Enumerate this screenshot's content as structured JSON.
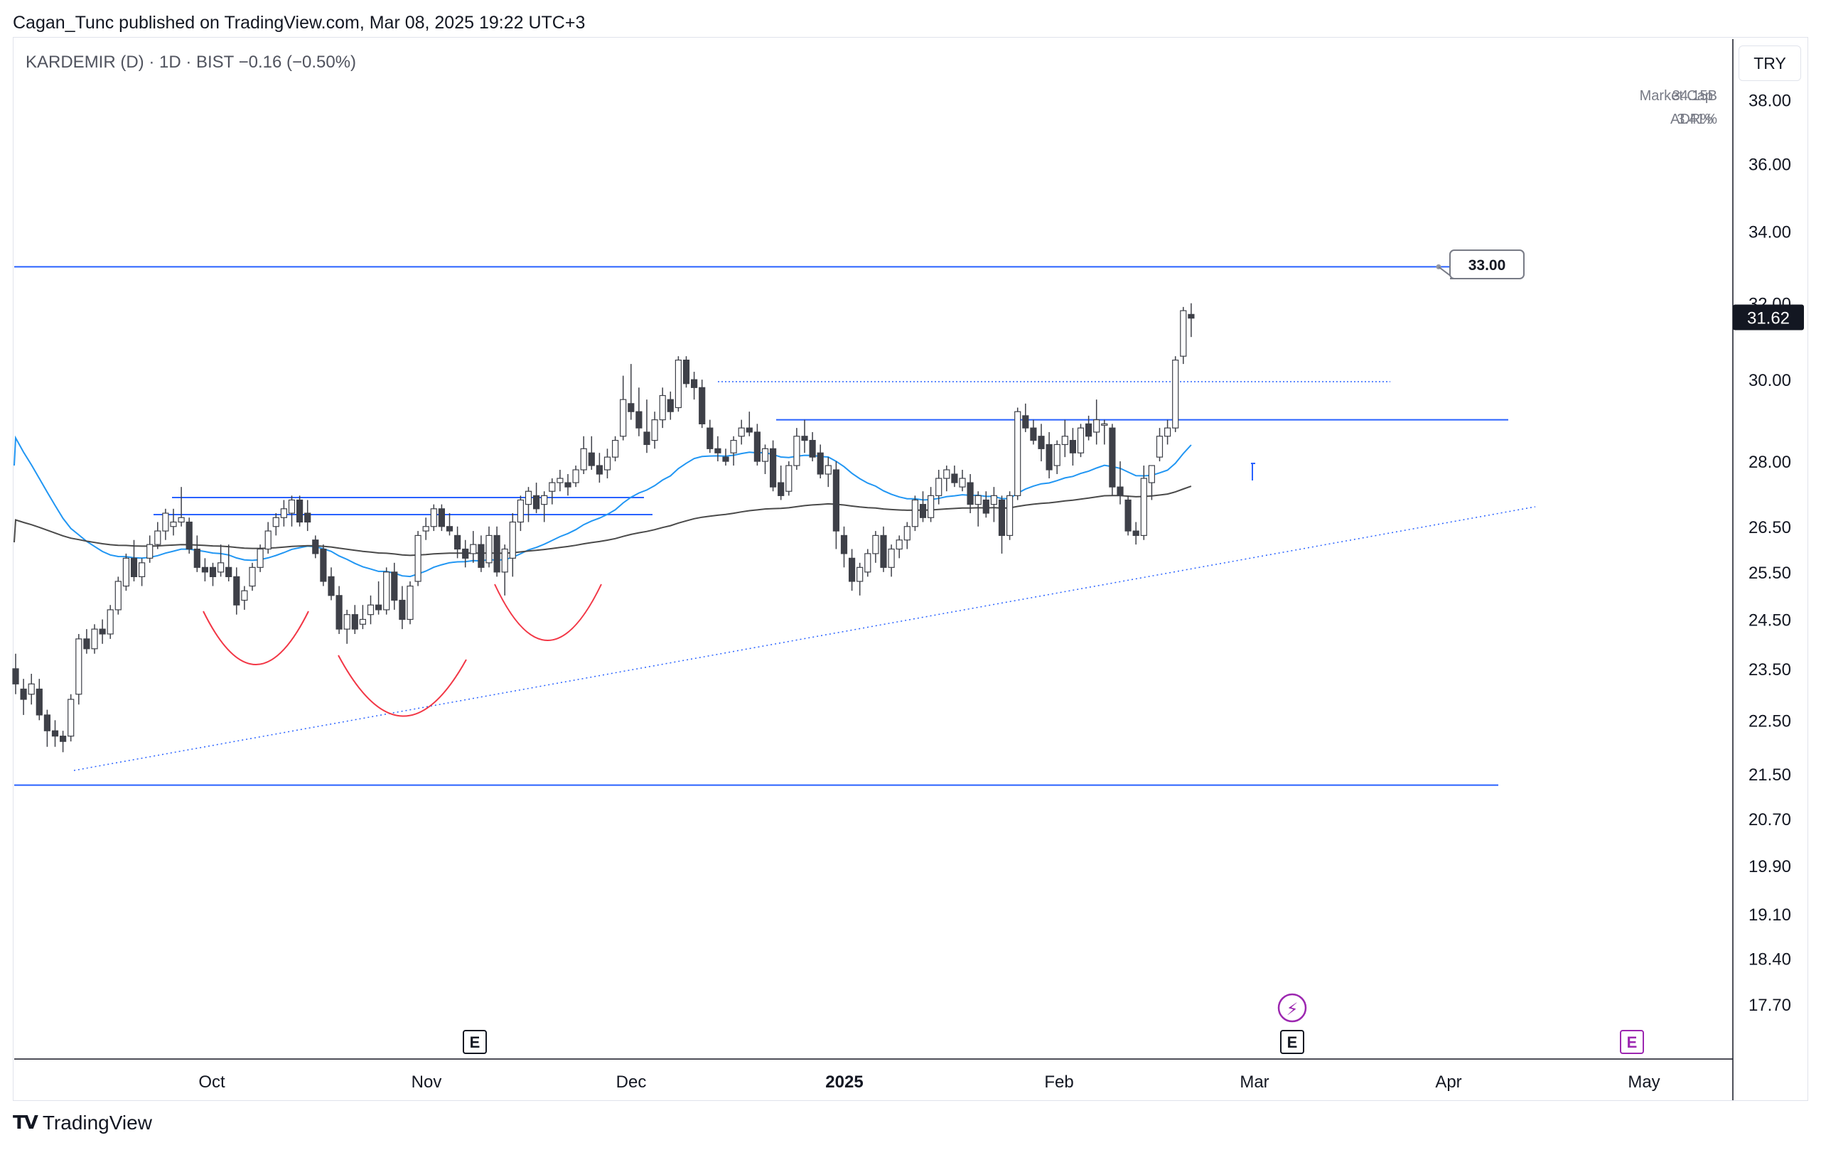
{
  "header": {
    "publisher_line": "Cagan_Tunc published on TradingView.com, Mar 08, 2025 19:22 UTC+3"
  },
  "legend": {
    "symbol_line": "KARDEMIR (D) · 1D · BIST  −0.16 (−0.50%)"
  },
  "stats": {
    "market_cap_label": "Market Cap",
    "market_cap_value": "34.15B",
    "adr_label": "ADR%",
    "adr_value": "3.41%"
  },
  "currency_button": "TRY",
  "brand": {
    "name": "TradingView",
    "logo_text": "TV"
  },
  "colors": {
    "up_candle": "#ffffff",
    "down_candle": "#3e4048",
    "wick": "#3e4048",
    "ma_fast": "#2196f3",
    "ma_slow": "#4a4a4a",
    "level_lines": "#2962ff",
    "pattern_arcs": "#f23645",
    "earnings_marker": "#9c27b0"
  },
  "chart_data": {
    "type": "candlestick",
    "symbol": "KARDEMIR",
    "interval": "1D",
    "exchange": "BIST",
    "currency": "TRY",
    "y_scale": "log",
    "ylim": [
      16.9,
      40.0
    ],
    "y_ticks": [
      "38.00",
      "36.00",
      "34.00",
      "32.00",
      "30.00",
      "28.00",
      "26.50",
      "25.50",
      "24.50",
      "23.50",
      "22.50",
      "21.50",
      "20.70",
      "19.90",
      "19.10",
      "18.40",
      "17.70"
    ],
    "x_ticks": [
      "Oct",
      "Nov",
      "Dec",
      "2025",
      "Feb",
      "Mar",
      "Apr",
      "May"
    ],
    "last_price": "31.62",
    "target_label": "33.00",
    "horizontal_levels": [
      33.0,
      29.0,
      21.3
    ],
    "candles": [
      [
        23.5,
        23.8,
        23.0,
        23.2
      ],
      [
        23.1,
        23.3,
        22.6,
        22.9
      ],
      [
        23.0,
        23.4,
        22.8,
        23.2
      ],
      [
        23.1,
        23.3,
        22.5,
        22.6
      ],
      [
        22.6,
        22.7,
        22.0,
        22.3
      ],
      [
        22.3,
        22.5,
        22.0,
        22.2
      ],
      [
        22.2,
        22.3,
        21.9,
        22.1
      ],
      [
        22.2,
        23.0,
        22.1,
        22.9
      ],
      [
        23.0,
        24.2,
        22.8,
        24.1
      ],
      [
        24.1,
        24.3,
        23.8,
        23.9
      ],
      [
        23.9,
        24.4,
        23.8,
        24.3
      ],
      [
        24.3,
        24.5,
        24.0,
        24.2
      ],
      [
        24.2,
        24.8,
        24.1,
        24.7
      ],
      [
        24.7,
        25.4,
        24.6,
        25.3
      ],
      [
        25.2,
        25.9,
        25.1,
        25.8
      ],
      [
        25.8,
        26.2,
        25.3,
        25.4
      ],
      [
        25.4,
        25.8,
        25.2,
        25.7
      ],
      [
        25.8,
        26.3,
        25.7,
        26.1
      ],
      [
        26.1,
        26.6,
        26.0,
        26.4
      ],
      [
        26.4,
        26.9,
        26.2,
        26.8
      ],
      [
        26.5,
        26.9,
        26.3,
        26.6
      ],
      [
        26.6,
        27.4,
        26.5,
        26.7
      ],
      [
        26.6,
        26.7,
        25.9,
        26.0
      ],
      [
        26.0,
        26.3,
        25.5,
        25.6
      ],
      [
        25.6,
        25.8,
        25.3,
        25.5
      ],
      [
        25.6,
        25.7,
        25.2,
        25.4
      ],
      [
        25.5,
        26.1,
        25.4,
        25.7
      ],
      [
        25.6,
        26.1,
        25.3,
        25.4
      ],
      [
        25.4,
        25.6,
        24.6,
        24.8
      ],
      [
        24.9,
        25.2,
        24.7,
        25.1
      ],
      [
        25.2,
        25.7,
        25.1,
        25.6
      ],
      [
        25.6,
        26.1,
        25.5,
        26.0
      ],
      [
        26.0,
        26.6,
        25.9,
        26.4
      ],
      [
        26.5,
        26.8,
        26.3,
        26.7
      ],
      [
        26.7,
        27.1,
        26.5,
        26.9
      ],
      [
        26.8,
        27.2,
        26.5,
        27.1
      ],
      [
        27.1,
        27.2,
        26.5,
        26.6
      ],
      [
        26.8,
        27.1,
        26.4,
        26.6
      ],
      [
        26.2,
        26.3,
        25.8,
        25.9
      ],
      [
        26.0,
        26.1,
        25.2,
        25.3
      ],
      [
        25.4,
        25.6,
        24.9,
        25.0
      ],
      [
        25.0,
        25.2,
        24.2,
        24.3
      ],
      [
        24.3,
        24.7,
        24.0,
        24.6
      ],
      [
        24.6,
        24.8,
        24.2,
        24.3
      ],
      [
        24.4,
        24.8,
        24.3,
        24.5
      ],
      [
        24.6,
        25.0,
        24.4,
        24.8
      ],
      [
        24.8,
        25.3,
        24.6,
        24.7
      ],
      [
        24.7,
        25.6,
        24.6,
        25.5
      ],
      [
        25.5,
        25.7,
        24.7,
        24.9
      ],
      [
        24.9,
        25.2,
        24.3,
        24.5
      ],
      [
        24.5,
        25.3,
        24.4,
        25.2
      ],
      [
        25.3,
        26.4,
        25.2,
        26.3
      ],
      [
        26.4,
        26.7,
        26.2,
        26.5
      ],
      [
        26.5,
        27.0,
        26.4,
        26.9
      ],
      [
        26.9,
        27.0,
        26.4,
        26.5
      ],
      [
        26.5,
        26.8,
        26.3,
        26.4
      ],
      [
        26.3,
        26.5,
        25.8,
        26.0
      ],
      [
        26.0,
        26.2,
        25.6,
        25.8
      ],
      [
        25.9,
        26.4,
        25.7,
        26.1
      ],
      [
        26.1,
        26.3,
        25.5,
        25.6
      ],
      [
        25.7,
        26.5,
        25.6,
        26.3
      ],
      [
        26.3,
        26.5,
        25.4,
        25.5
      ],
      [
        25.5,
        26.1,
        25.0,
        26.0
      ],
      [
        25.8,
        26.8,
        25.4,
        26.6
      ],
      [
        26.6,
        27.2,
        26.4,
        27.1
      ],
      [
        27.0,
        27.4,
        26.6,
        27.3
      ],
      [
        27.2,
        27.5,
        26.8,
        26.9
      ],
      [
        27.0,
        27.3,
        26.6,
        27.2
      ],
      [
        27.3,
        27.6,
        27.0,
        27.5
      ],
      [
        27.5,
        27.8,
        27.3,
        27.6
      ],
      [
        27.5,
        27.7,
        27.2,
        27.4
      ],
      [
        27.5,
        27.9,
        27.4,
        27.8
      ],
      [
        27.8,
        28.6,
        27.7,
        28.3
      ],
      [
        28.2,
        28.6,
        27.8,
        27.9
      ],
      [
        27.9,
        28.2,
        27.5,
        27.7
      ],
      [
        27.8,
        28.3,
        27.6,
        28.1
      ],
      [
        28.1,
        28.6,
        28.0,
        28.5
      ],
      [
        28.6,
        30.1,
        28.5,
        29.5
      ],
      [
        29.4,
        30.4,
        29.0,
        29.2
      ],
      [
        29.2,
        29.8,
        28.6,
        28.8
      ],
      [
        28.7,
        29.5,
        28.2,
        28.4
      ],
      [
        28.5,
        29.2,
        28.3,
        29.0
      ],
      [
        29.0,
        29.8,
        28.8,
        29.6
      ],
      [
        29.5,
        29.7,
        29.0,
        29.2
      ],
      [
        29.3,
        30.6,
        29.2,
        30.5
      ],
      [
        30.5,
        30.6,
        29.8,
        29.9
      ],
      [
        30.0,
        30.2,
        29.5,
        29.8
      ],
      [
        29.8,
        30.0,
        28.8,
        28.9
      ],
      [
        28.8,
        29.0,
        28.2,
        28.3
      ],
      [
        28.3,
        28.6,
        28.0,
        28.2
      ],
      [
        28.1,
        28.3,
        27.9,
        28.0
      ],
      [
        28.2,
        28.6,
        27.9,
        28.5
      ],
      [
        28.6,
        29.0,
        28.4,
        28.8
      ],
      [
        28.8,
        29.2,
        28.6,
        28.7
      ],
      [
        28.7,
        28.9,
        27.9,
        28.0
      ],
      [
        28.0,
        28.4,
        27.7,
        28.3
      ],
      [
        28.3,
        28.5,
        27.3,
        27.4
      ],
      [
        27.5,
        27.9,
        27.1,
        27.2
      ],
      [
        27.3,
        28.0,
        27.2,
        27.9
      ],
      [
        27.9,
        28.8,
        27.8,
        28.6
      ],
      [
        28.6,
        29.0,
        28.2,
        28.5
      ],
      [
        28.5,
        28.7,
        28.0,
        28.1
      ],
      [
        28.2,
        28.4,
        27.6,
        27.7
      ],
      [
        27.7,
        28.1,
        27.4,
        27.9
      ],
      [
        27.8,
        28.0,
        26.0,
        26.4
      ],
      [
        26.3,
        26.5,
        25.6,
        25.9
      ],
      [
        25.8,
        26.0,
        25.1,
        25.3
      ],
      [
        25.3,
        25.7,
        25.0,
        25.6
      ],
      [
        25.5,
        26.0,
        25.4,
        25.9
      ],
      [
        25.9,
        26.4,
        25.7,
        26.3
      ],
      [
        26.3,
        26.5,
        25.5,
        25.6
      ],
      [
        25.6,
        26.1,
        25.4,
        26.0
      ],
      [
        26.0,
        26.3,
        25.8,
        26.2
      ],
      [
        26.2,
        26.6,
        26.0,
        26.5
      ],
      [
        26.5,
        27.2,
        26.4,
        27.1
      ],
      [
        27.0,
        27.3,
        26.6,
        26.7
      ],
      [
        26.7,
        27.4,
        26.6,
        27.2
      ],
      [
        27.2,
        27.8,
        27.0,
        27.6
      ],
      [
        27.6,
        27.9,
        27.3,
        27.8
      ],
      [
        27.7,
        27.9,
        27.4,
        27.5
      ],
      [
        27.4,
        27.8,
        27.3,
        27.6
      ],
      [
        27.5,
        27.7,
        26.8,
        27.0
      ],
      [
        27.0,
        27.3,
        26.5,
        27.2
      ],
      [
        27.1,
        27.3,
        26.7,
        26.8
      ],
      [
        27.0,
        27.4,
        26.6,
        27.2
      ],
      [
        27.1,
        27.2,
        25.9,
        26.3
      ],
      [
        26.3,
        27.3,
        26.2,
        27.2
      ],
      [
        27.2,
        29.3,
        27.1,
        29.2
      ],
      [
        29.1,
        29.4,
        28.7,
        28.8
      ],
      [
        28.8,
        29.0,
        28.4,
        28.5
      ],
      [
        28.6,
        28.9,
        28.0,
        28.3
      ],
      [
        28.4,
        28.7,
        27.6,
        27.8
      ],
      [
        27.9,
        28.5,
        27.7,
        28.4
      ],
      [
        28.4,
        29.0,
        28.1,
        28.6
      ],
      [
        28.5,
        28.8,
        27.9,
        28.2
      ],
      [
        28.2,
        28.9,
        28.1,
        28.8
      ],
      [
        28.9,
        29.1,
        28.5,
        28.6
      ],
      [
        28.7,
        29.5,
        28.4,
        29.0
      ],
      [
        28.9,
        29.0,
        28.4,
        28.9
      ],
      [
        28.8,
        28.9,
        27.2,
        27.4
      ],
      [
        27.4,
        28.0,
        27.0,
        27.2
      ],
      [
        27.1,
        27.2,
        26.3,
        26.4
      ],
      [
        26.4,
        26.6,
        26.1,
        26.3
      ],
      [
        26.3,
        27.9,
        26.2,
        27.6
      ],
      [
        27.5,
        27.8,
        27.1,
        27.9
      ],
      [
        28.1,
        28.8,
        28.0,
        28.6
      ],
      [
        28.6,
        29.0,
        28.4,
        28.8
      ],
      [
        28.8,
        30.6,
        28.7,
        30.5
      ],
      [
        30.6,
        31.9,
        30.4,
        31.8
      ],
      [
        31.7,
        32.0,
        31.1,
        31.6
      ]
    ],
    "ma_fast_start_value": 28.9,
    "ma_slow_start_value": 26.7,
    "annotations": [
      {
        "kind": "event",
        "label": "E"
      },
      {
        "kind": "event",
        "label": "E"
      },
      {
        "kind": "event",
        "label": "E"
      },
      {
        "kind": "dividend",
        "label": "⚡"
      }
    ]
  }
}
